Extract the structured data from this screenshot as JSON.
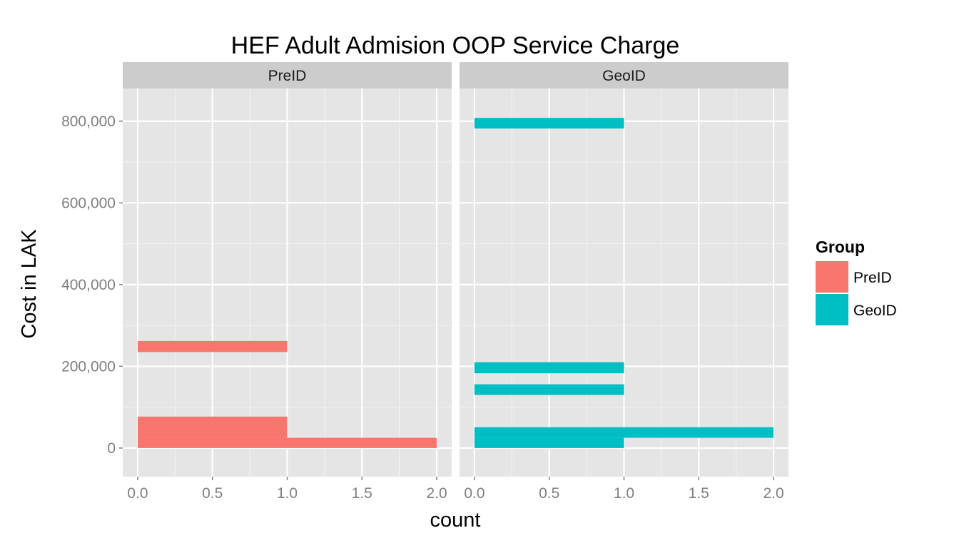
{
  "chart_data": {
    "type": "bar",
    "orientation": "horizontal",
    "title": "HEF Adult Admision OOP  Service Charge",
    "xlabel": "count",
    "ylabel": "Cost in LAK",
    "xlim": [
      -0.1,
      2.1
    ],
    "ylim": [
      -70000,
      880000
    ],
    "x_ticks": [
      0,
      0.5,
      1,
      1.5,
      2
    ],
    "x_tick_labels": [
      "0.0",
      "0.5",
      "1.0",
      "1.5",
      "2.0"
    ],
    "y_ticks": [
      0,
      200000,
      400000,
      600000,
      800000
    ],
    "y_tick_labels": [
      "0",
      "200,000",
      "400,000",
      "600,000",
      "800,000"
    ],
    "grid": true,
    "legend": {
      "title": "Group",
      "position": "right",
      "entries": [
        {
          "label": "PreID",
          "color": "#F8766D"
        },
        {
          "label": "GeoID",
          "color": "#00BFC4"
        }
      ]
    },
    "panels": [
      {
        "strip": "PreID",
        "color": "#F8766D",
        "bins": [
          {
            "y_from": 0,
            "y_to": 25000,
            "count": 2
          },
          {
            "y_from": 25000,
            "y_to": 77000,
            "count": 1
          },
          {
            "y_from": 235000,
            "y_to": 262000,
            "count": 1
          }
        ]
      },
      {
        "strip": "GeoID",
        "color": "#00BFC4",
        "bins": [
          {
            "y_from": 0,
            "y_to": 25000,
            "count": 1
          },
          {
            "y_from": 25000,
            "y_to": 51000,
            "count": 2
          },
          {
            "y_from": 130000,
            "y_to": 156000,
            "count": 1
          },
          {
            "y_from": 183000,
            "y_to": 210000,
            "count": 1
          },
          {
            "y_from": 782000,
            "y_to": 808000,
            "count": 1
          }
        ]
      }
    ]
  }
}
